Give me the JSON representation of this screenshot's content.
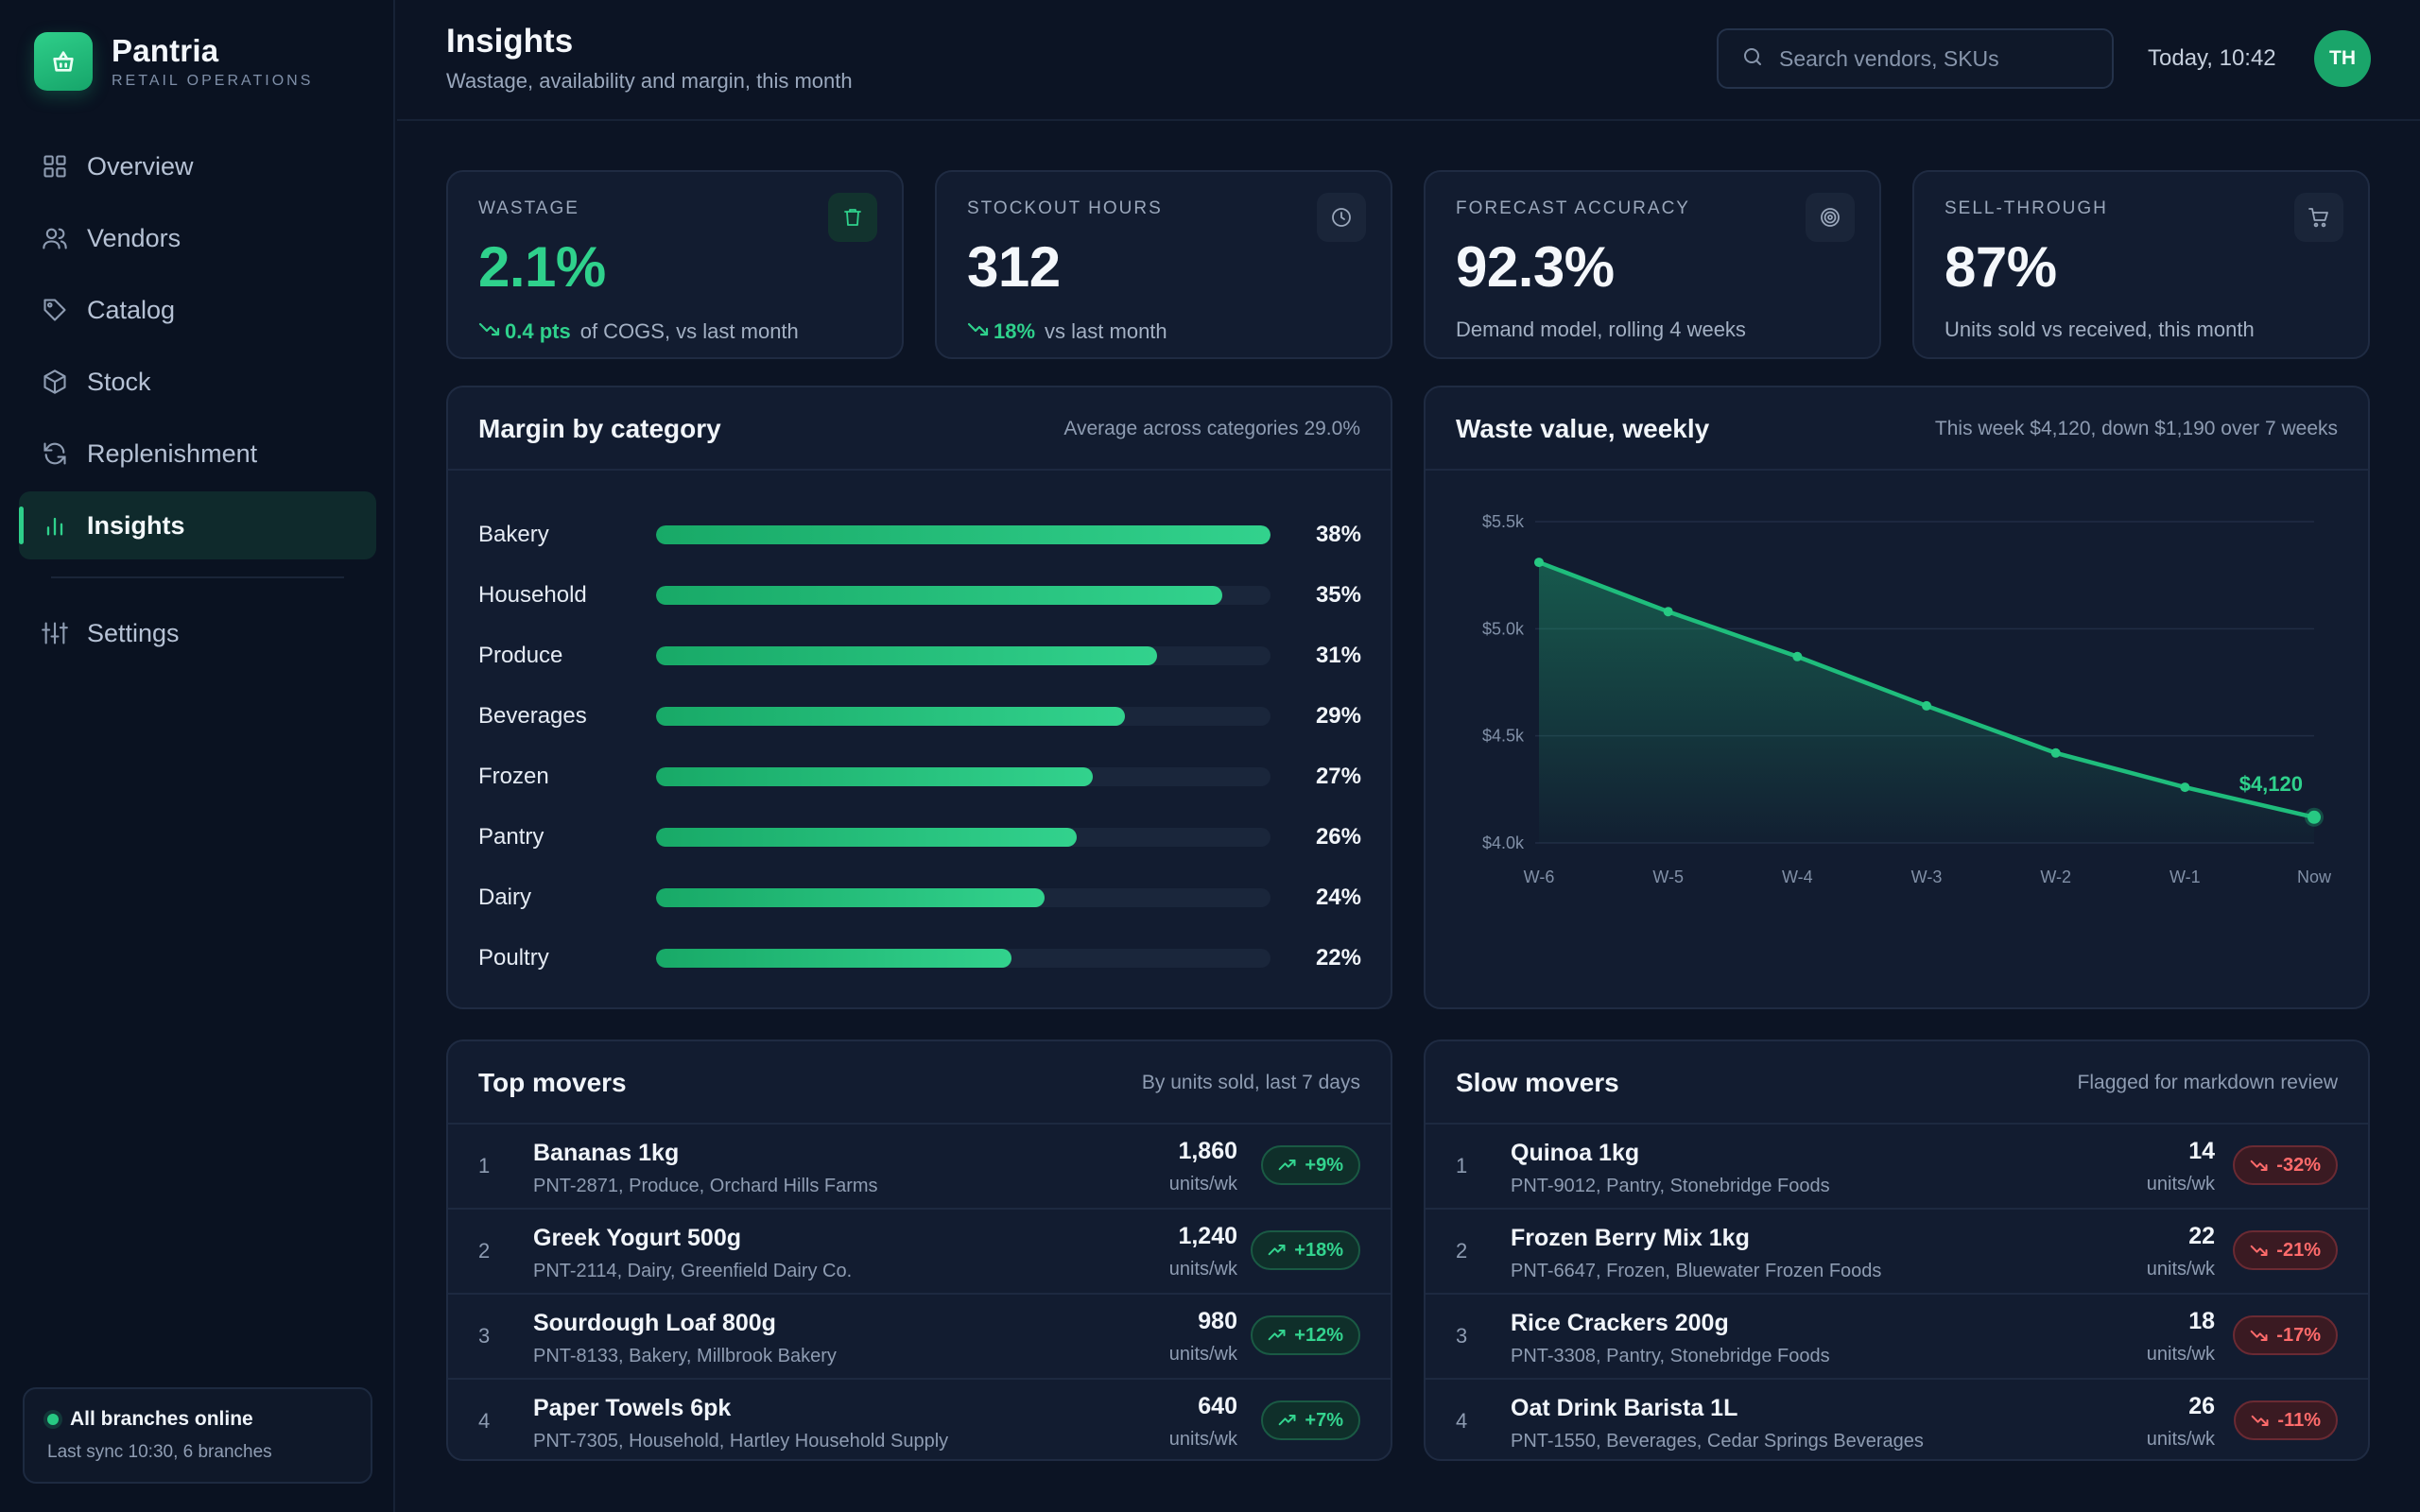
{
  "brand": {
    "name": "Pantria",
    "sub": "RETAIL OPERATIONS"
  },
  "nav": {
    "items": [
      {
        "label": "Overview",
        "icon": "grid-icon"
      },
      {
        "label": "Vendors",
        "icon": "users-icon"
      },
      {
        "label": "Catalog",
        "icon": "tag-icon"
      },
      {
        "label": "Stock",
        "icon": "box-icon"
      },
      {
        "label": "Replenishment",
        "icon": "refresh-icon"
      },
      {
        "label": "Insights",
        "icon": "bar-chart-icon",
        "active": true
      }
    ],
    "settings": {
      "label": "Settings",
      "icon": "sliders-icon"
    }
  },
  "status": {
    "title": "All branches online",
    "sub": "Last sync 10:30, 6 branches"
  },
  "header": {
    "title": "Insights",
    "subtitle": "Wastage, availability and margin, this month",
    "search_placeholder": "Search vendors, SKUs",
    "clock": "Today, 10:42",
    "avatar": "TH"
  },
  "kpis": [
    {
      "label": "WASTAGE",
      "value": "2.1%",
      "delta": "0.4 pts",
      "note": "of COGS, vs last month",
      "icon": "trash-icon"
    },
    {
      "label": "STOCKOUT HOURS",
      "value": "312",
      "delta": "18%",
      "note": "vs last month",
      "icon": "clock-icon"
    },
    {
      "label": "FORECAST ACCURACY",
      "value": "92.3%",
      "note": "Demand model, rolling 4 weeks",
      "icon": "target-icon"
    },
    {
      "label": "SELL-THROUGH",
      "value": "87%",
      "note": "Units sold vs received, this month",
      "icon": "cart-icon"
    }
  ],
  "margin": {
    "title": "Margin by category",
    "meta": "Average across categories 29.0%",
    "rows": [
      {
        "label": "Bakery",
        "value": "38%",
        "pct": 38
      },
      {
        "label": "Household",
        "value": "35%",
        "pct": 35
      },
      {
        "label": "Produce",
        "value": "31%",
        "pct": 31
      },
      {
        "label": "Beverages",
        "value": "29%",
        "pct": 29
      },
      {
        "label": "Frozen",
        "value": "27%",
        "pct": 27
      },
      {
        "label": "Pantry",
        "value": "26%",
        "pct": 26
      },
      {
        "label": "Dairy",
        "value": "24%",
        "pct": 24
      },
      {
        "label": "Poultry",
        "value": "22%",
        "pct": 22
      }
    ]
  },
  "waste": {
    "title": "Waste value, weekly",
    "meta": "This week $4,120, down $1,190 over 7 weeks"
  },
  "chart_data": {
    "type": "area",
    "title": "Waste value, weekly",
    "x": [
      "W-6",
      "W-5",
      "W-4",
      "W-3",
      "W-2",
      "W-1",
      "Now"
    ],
    "series": [
      {
        "values": [
          5310,
          5080,
          4870,
          4640,
          4420,
          4260,
          4120
        ]
      }
    ],
    "ylim": [
      4000,
      5500
    ],
    "yticks": [
      4000,
      4500,
      5000,
      5500
    ],
    "ytick_labels": [
      "$4.0k",
      "$4.5k",
      "$5.0k",
      "$5.5k"
    ],
    "last_label": "$4,120",
    "grid": true,
    "color": "#1fbd7c"
  },
  "top_movers": {
    "title": "Top movers",
    "meta": "By units sold, last 7 days",
    "rows": [
      {
        "rank": "1",
        "name": "Bananas 1kg",
        "sub": "PNT-2871, Produce, Orchard Hills Farms",
        "num": "1,860",
        "unit": "units/wk",
        "delta": "+9%"
      },
      {
        "rank": "2",
        "name": "Greek Yogurt 500g",
        "sub": "PNT-2114, Dairy, Greenfield Dairy Co.",
        "num": "1,240",
        "unit": "units/wk",
        "delta": "+18%"
      },
      {
        "rank": "3",
        "name": "Sourdough Loaf 800g",
        "sub": "PNT-8133, Bakery, Millbrook Bakery",
        "num": "980",
        "unit": "units/wk",
        "delta": "+12%"
      },
      {
        "rank": "4",
        "name": "Paper Towels 6pk",
        "sub": "PNT-7305, Household, Hartley Household Supply",
        "num": "640",
        "unit": "units/wk",
        "delta": "+7%"
      }
    ]
  },
  "slow_movers": {
    "title": "Slow movers",
    "meta": "Flagged for markdown review",
    "rows": [
      {
        "rank": "1",
        "name": "Quinoa 1kg",
        "sub": "PNT-9012, Pantry, Stonebridge Foods",
        "num": "14",
        "unit": "units/wk",
        "delta": "-32%"
      },
      {
        "rank": "2",
        "name": "Frozen Berry Mix 1kg",
        "sub": "PNT-6647, Frozen, Bluewater Frozen Foods",
        "num": "22",
        "unit": "units/wk",
        "delta": "-21%"
      },
      {
        "rank": "3",
        "name": "Rice Crackers 200g",
        "sub": "PNT-3308, Pantry, Stonebridge Foods",
        "num": "18",
        "unit": "units/wk",
        "delta": "-17%"
      },
      {
        "rank": "4",
        "name": "Oat Drink Barista 1L",
        "sub": "PNT-1550, Beverages, Cedar Springs Beverages",
        "num": "26",
        "unit": "units/wk",
        "delta": "-11%"
      }
    ]
  }
}
